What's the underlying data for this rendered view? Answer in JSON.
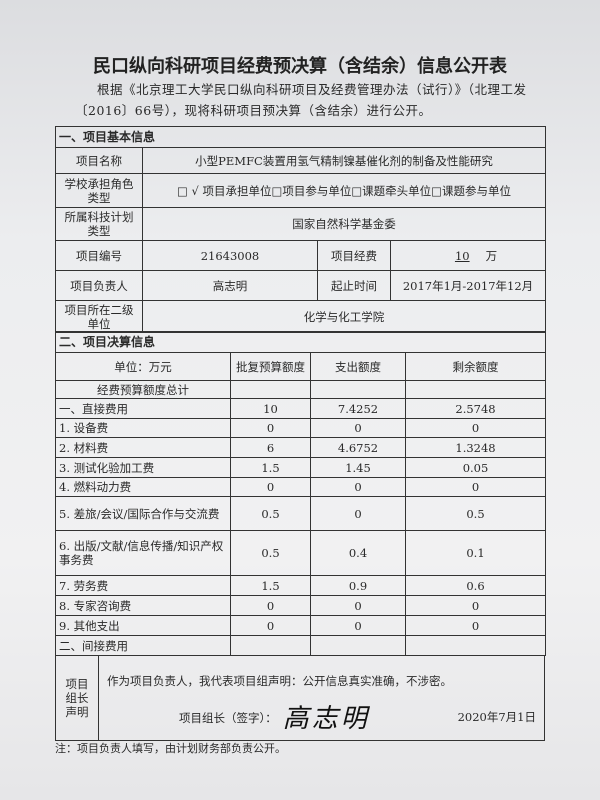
{
  "title": "民口纵向科研项目经费预决算（含结余）信息公开表",
  "intro_line1": "根据《北京理工大学民口纵向科研项目及经费管理办法（试行）》（北理工发",
  "intro_line2": "〔2016〕66号），现将科研项目预决算（含结余）进行公开。",
  "basic": {
    "section": "一、项目基本信息",
    "name_label": "项目名称",
    "name": "小型PEMFC装置用氢气精制镍基催化剂的制备及性能研究",
    "role_label": "学校承担角色类型",
    "role": "□ √ 项目承担单位□项目参与单位□课题牵头单位□课题参与单位",
    "plan_label": "所属科技计划类型",
    "plan": "国家自然科学基金委",
    "number_label": "项目编号",
    "number": "21643008",
    "funding_label": "项目经费",
    "funding": "10",
    "funding_unit": "万",
    "leader_label": "项目负责人",
    "leader": "高志明",
    "period_label": "起止时间",
    "period": "2017年1月-2017年12月",
    "dept_label": "项目所在二级单位",
    "dept": "化学与化工学院"
  },
  "budget": {
    "section": "二、项目决算信息",
    "headers": [
      "单位：万元",
      "批复预算额度",
      "支出额度",
      "剩余额度"
    ],
    "rows": [
      [
        "经费预算额度总计",
        "",
        "",
        ""
      ],
      [
        "一、直接费用",
        "10",
        "7.4252",
        "2.5748"
      ],
      [
        "1. 设备费",
        "0",
        "0",
        "0"
      ],
      [
        "2. 材料费",
        "6",
        "4.6752",
        "1.3248"
      ],
      [
        "3. 测试化验加工费",
        "1.5",
        "1.45",
        "0.05"
      ],
      [
        "4. 燃料动力费",
        "0",
        "0",
        "0"
      ],
      [
        "5. 差旅/会议/国际合作与交流费",
        "0.5",
        "0",
        "0.5"
      ],
      [
        "6. 出版/文献/信息传播/知识产权事务费",
        "0.5",
        "0.4",
        "0.1"
      ],
      [
        "7. 劳务费",
        "1.5",
        "0.9",
        "0.6"
      ],
      [
        "8. 专家咨询费",
        "0",
        "0",
        "0"
      ],
      [
        "9. 其他支出",
        "0",
        "0",
        "0"
      ],
      [
        "二、间接费用",
        "",
        "",
        ""
      ]
    ]
  },
  "declaration": {
    "label": "项目组长声明",
    "text": "作为项目负责人，我代表项目组声明：公开信息真实准确，不涉密。",
    "sign_label": "项目组长（签字）：",
    "signature": "高志明",
    "date": "2020年7月1日"
  },
  "note": "注：项目负责人填写，由计划财务部负责公开。"
}
